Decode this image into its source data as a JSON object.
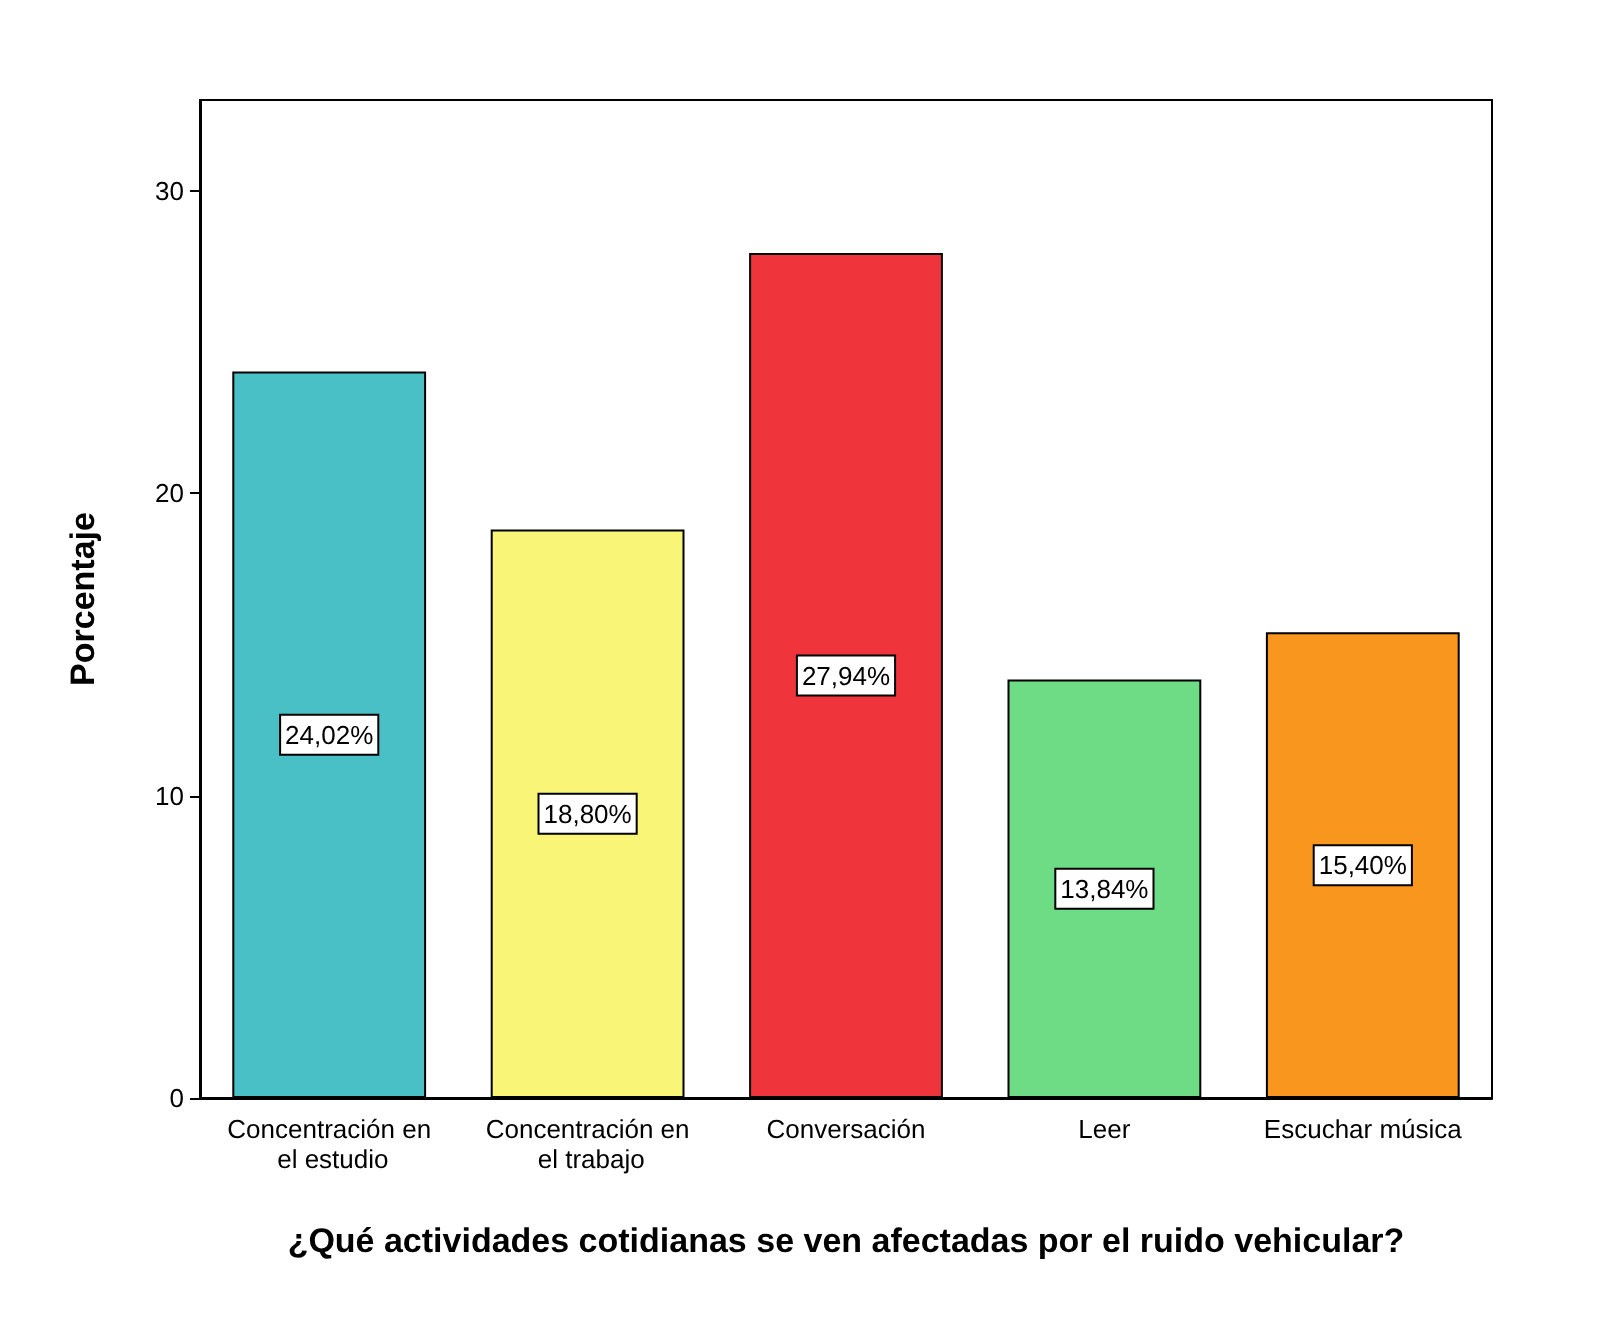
{
  "chart_data": {
    "type": "bar",
    "xlabel": "¿Qué actividades cotidianas se ven afectadas por el ruido vehicular?",
    "ylabel": "Porcentaje",
    "categories": [
      "Concentración en el estudio",
      "Concentración en el trabajo",
      "Conversación",
      "Leer",
      "Escuchar música"
    ],
    "values": [
      24.02,
      18.8,
      27.94,
      13.84,
      15.4
    ],
    "colors": [
      "#48c0c5",
      "#f8f577",
      "#f0343c",
      "#6ddc85",
      "#f8961e"
    ],
    "value_labels": [
      "24,02%",
      "18,80%",
      "27,94%",
      "13,84%",
      "15,40%"
    ],
    "ylim": [
      0,
      33
    ],
    "yticks": [
      0,
      10,
      20,
      30
    ],
    "grid": false
  }
}
